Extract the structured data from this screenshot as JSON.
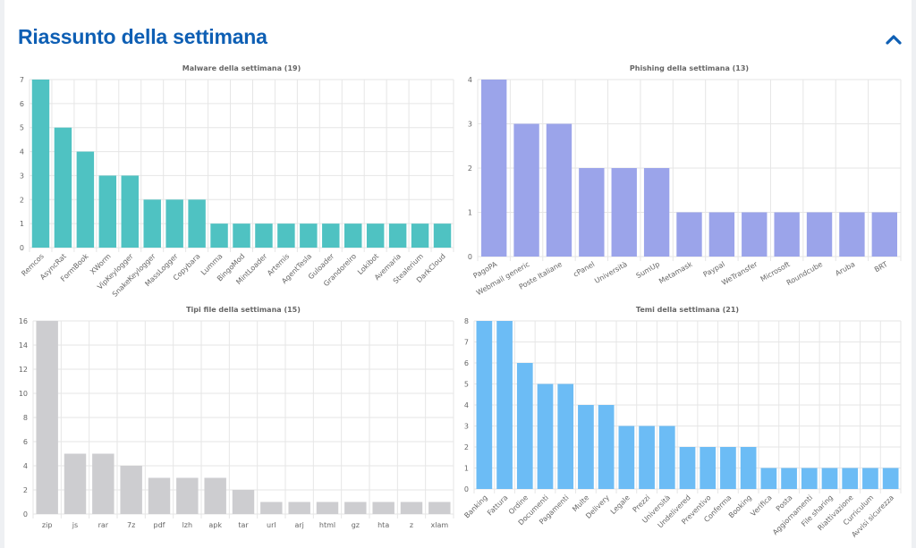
{
  "header": {
    "title": "Riassunto della settimana",
    "collapse_icon": "chevron-up-icon",
    "accent_color": "#0e5fb4"
  },
  "chart_data": [
    {
      "type": "bar",
      "title": "Malware della settimana (19)",
      "color": "#4fc2c2",
      "categories": [
        "Remcos",
        "AsyncRat",
        "FormBook",
        "XWorm",
        "VipKeylogger",
        "SnakeKeylogger",
        "MassLogger",
        "Copybara",
        "Lumma",
        "BingoMod",
        "MintLoader",
        "Artemis",
        "AgentTesla",
        "Guloader",
        "Grandoreiro",
        "Lokibot",
        "Avemaria",
        "Stealerium",
        "DarkCloud"
      ],
      "values": [
        7,
        5,
        4,
        3,
        3,
        2,
        2,
        2,
        1,
        1,
        1,
        1,
        1,
        1,
        1,
        1,
        1,
        1,
        1
      ],
      "yticks": [
        0,
        1,
        2,
        3,
        4,
        5,
        6,
        7
      ],
      "ylim": [
        0,
        7
      ],
      "xlabel_rotation": -45
    },
    {
      "type": "bar",
      "title": "Phishing della settimana (13)",
      "color": "#9ba4ea",
      "categories": [
        "PagoPA",
        "Webmail generic",
        "Poste Italiane",
        "cPanel",
        "Università",
        "SumUp",
        "Metamask",
        "Paypal",
        "WeTransfer",
        "Microsoft",
        "Roundcube",
        "Aruba",
        "BRT"
      ],
      "values": [
        4,
        3,
        3,
        2,
        2,
        2,
        1,
        1,
        1,
        1,
        1,
        1,
        1
      ],
      "yticks": [
        0,
        1,
        2,
        3,
        4
      ],
      "ylim": [
        0,
        4
      ],
      "xlabel_rotation": -30
    },
    {
      "type": "bar",
      "title": "Tipi file della settimana (15)",
      "color": "#cdcdd0",
      "categories": [
        "zip",
        "js",
        "rar",
        "7z",
        "pdf",
        "lzh",
        "apk",
        "tar",
        "url",
        "arj",
        "html",
        "gz",
        "hta",
        "z",
        "xlam"
      ],
      "values": [
        16,
        5,
        5,
        4,
        3,
        3,
        3,
        2,
        1,
        1,
        1,
        1,
        1,
        1,
        1
      ],
      "yticks": [
        0,
        2,
        4,
        6,
        8,
        10,
        12,
        14,
        16
      ],
      "ylim": [
        0,
        16
      ],
      "xlabel_rotation": 0
    },
    {
      "type": "bar",
      "title": "Temi della settimana (21)",
      "color": "#6cbcf5",
      "categories": [
        "Banking",
        "Fattura",
        "Ordine",
        "Documenti",
        "Pagamenti",
        "Multe",
        "Delivery",
        "Legale",
        "Prezzi",
        "Università",
        "Undelivered",
        "Preventivo",
        "Conferma",
        "Booking",
        "Verifica",
        "Posta",
        "Aggiornamenti",
        "File sharing",
        "Riattivazione",
        "Curriculum",
        "Avvisi sicurezza"
      ],
      "values": [
        8,
        8,
        6,
        5,
        5,
        4,
        4,
        3,
        3,
        3,
        2,
        2,
        2,
        2,
        1,
        1,
        1,
        1,
        1,
        1,
        1
      ],
      "yticks": [
        0,
        1,
        2,
        3,
        4,
        5,
        6,
        7,
        8
      ],
      "ylim": [
        0,
        8
      ],
      "xlabel_rotation": -45
    }
  ]
}
